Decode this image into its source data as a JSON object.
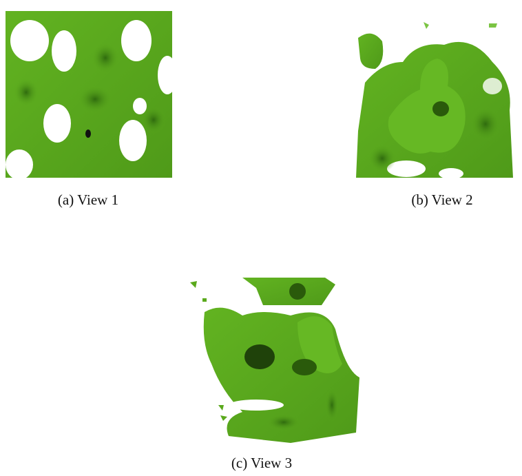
{
  "figures": [
    {
      "caption": "(a) View 1"
    },
    {
      "caption": "(b) View 2"
    },
    {
      "caption": "(c) View 3"
    }
  ]
}
